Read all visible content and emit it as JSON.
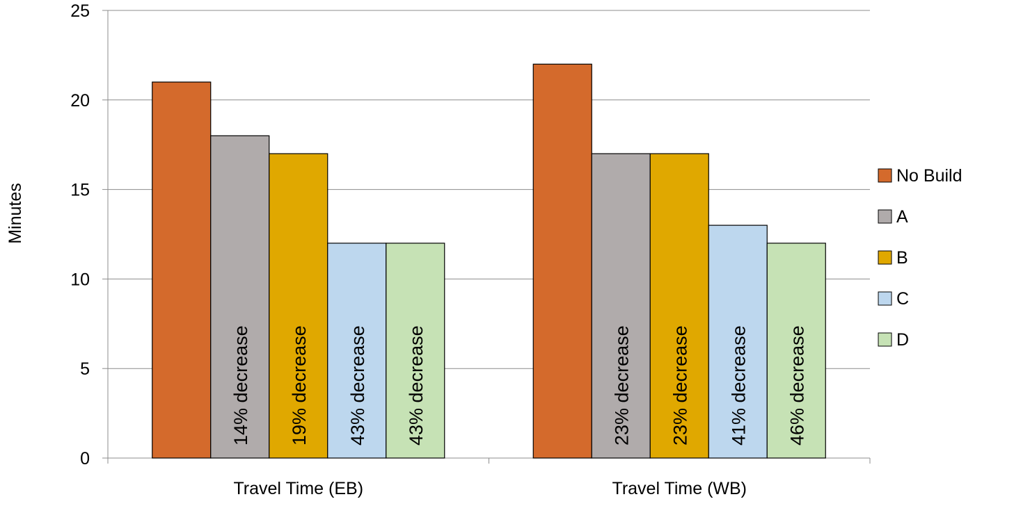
{
  "chart_data": {
    "type": "bar",
    "categories": [
      "Travel Time (EB)",
      "Travel Time (WB)"
    ],
    "series": [
      {
        "name": "No Build",
        "color": "#D46A2C",
        "values": [
          21,
          22
        ],
        "labels": [
          "",
          ""
        ]
      },
      {
        "name": "A",
        "color": "#B0ABAB",
        "values": [
          18,
          17
        ],
        "labels": [
          "14% decrease",
          "23% decrease"
        ]
      },
      {
        "name": "B",
        "color": "#E0A800",
        "values": [
          17,
          17
        ],
        "labels": [
          "19% decrease",
          "23% decrease"
        ]
      },
      {
        "name": "C",
        "color": "#BDD7EE",
        "values": [
          12,
          13
        ],
        "labels": [
          "43% decrease",
          "41% decrease"
        ]
      },
      {
        "name": "D",
        "color": "#C6E2B5",
        "values": [
          12,
          12
        ],
        "labels": [
          "43% decrease",
          "46% decrease"
        ]
      }
    ],
    "ylabel": "Minutes",
    "xlabel": "",
    "ylim": [
      0,
      25
    ],
    "yticks": [
      0,
      5,
      10,
      15,
      20,
      25
    ],
    "grid": true,
    "legend_position": "right"
  }
}
